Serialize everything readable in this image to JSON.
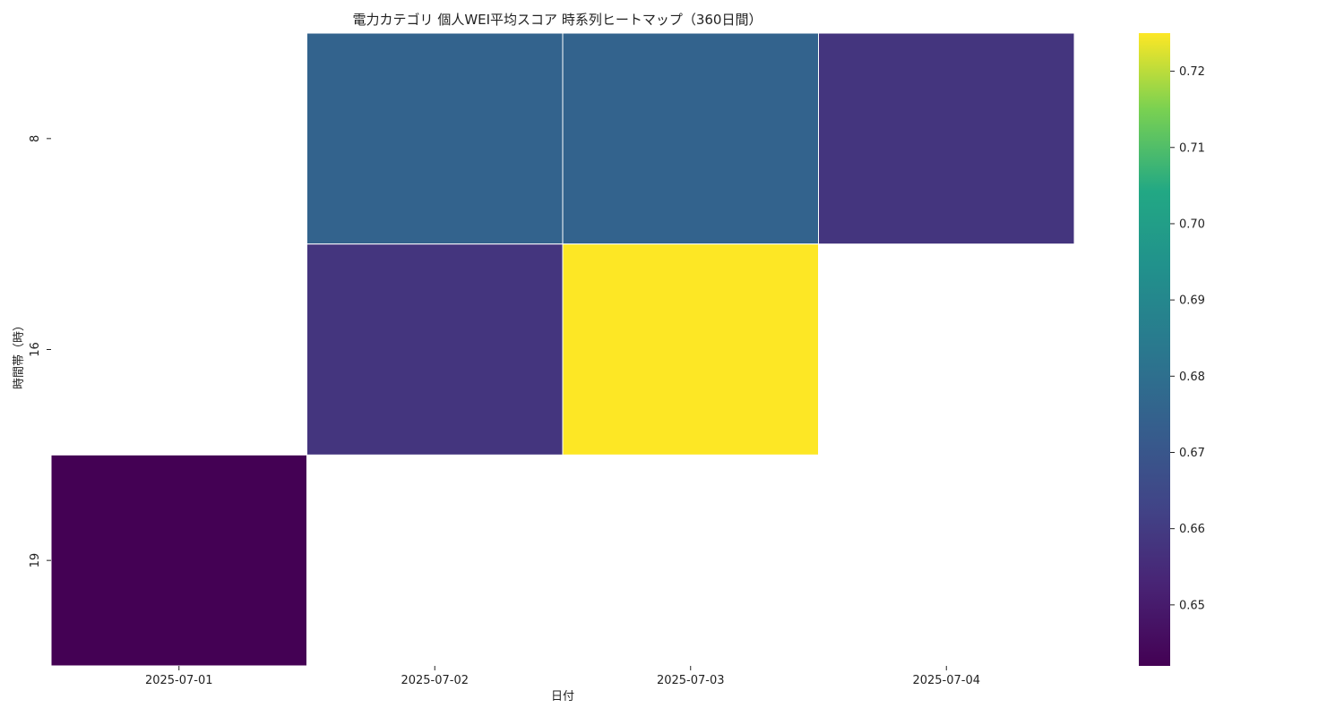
{
  "chart_data": {
    "type": "heatmap",
    "title": "電力カテゴリ 個人WEI平均スコア 時系列ヒートマップ（360日間）",
    "xlabel": "日付",
    "ylabel": "時間帯（時）",
    "x_categories": [
      "2025-07-01",
      "2025-07-02",
      "2025-07-03",
      "2025-07-04"
    ],
    "y_categories": [
      "8",
      "16",
      "19"
    ],
    "values": [
      [
        null,
        0.675,
        0.675,
        0.658
      ],
      [
        null,
        0.658,
        0.725,
        null
      ],
      [
        0.642,
        null,
        null,
        null
      ]
    ],
    "colormap": "viridis",
    "colorbar": {
      "range": [
        0.642,
        0.725
      ],
      "ticks": [
        "0.65",
        "0.66",
        "0.67",
        "0.68",
        "0.69",
        "0.70",
        "0.71",
        "0.72"
      ]
    }
  }
}
